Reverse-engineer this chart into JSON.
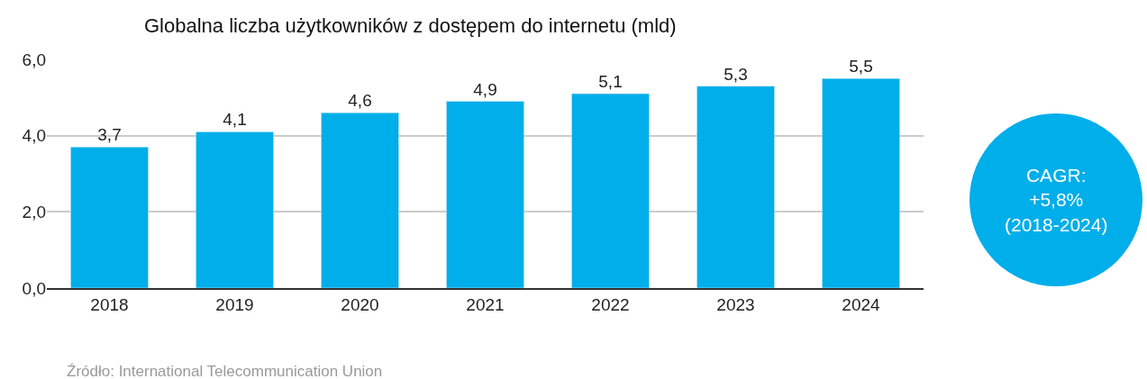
{
  "chart_data": {
    "type": "bar",
    "title": "Globalna liczba użytkowników z dostępem do internetu (mld)",
    "categories": [
      "2018",
      "2019",
      "2020",
      "2021",
      "2022",
      "2023",
      "2024"
    ],
    "values": [
      3.7,
      4.1,
      4.6,
      4.9,
      5.1,
      5.3,
      5.5
    ],
    "value_labels": [
      "3,7",
      "4,1",
      "4,6",
      "4,9",
      "5,1",
      "5,3",
      "5,5"
    ],
    "color": "#00aeea",
    "ylim": [
      0,
      6
    ],
    "yticks": [
      {
        "value": 0,
        "label": "0,0"
      },
      {
        "value": 2,
        "label": "2,0"
      },
      {
        "value": 4,
        "label": "4,0"
      },
      {
        "value": 6,
        "label": "6,0"
      }
    ],
    "grid": "y",
    "legend": false,
    "annotations": [
      "CAGR:\n+5,8%\n(2018-2024)",
      "Źródło: International Telecommunication Union"
    ]
  }
}
